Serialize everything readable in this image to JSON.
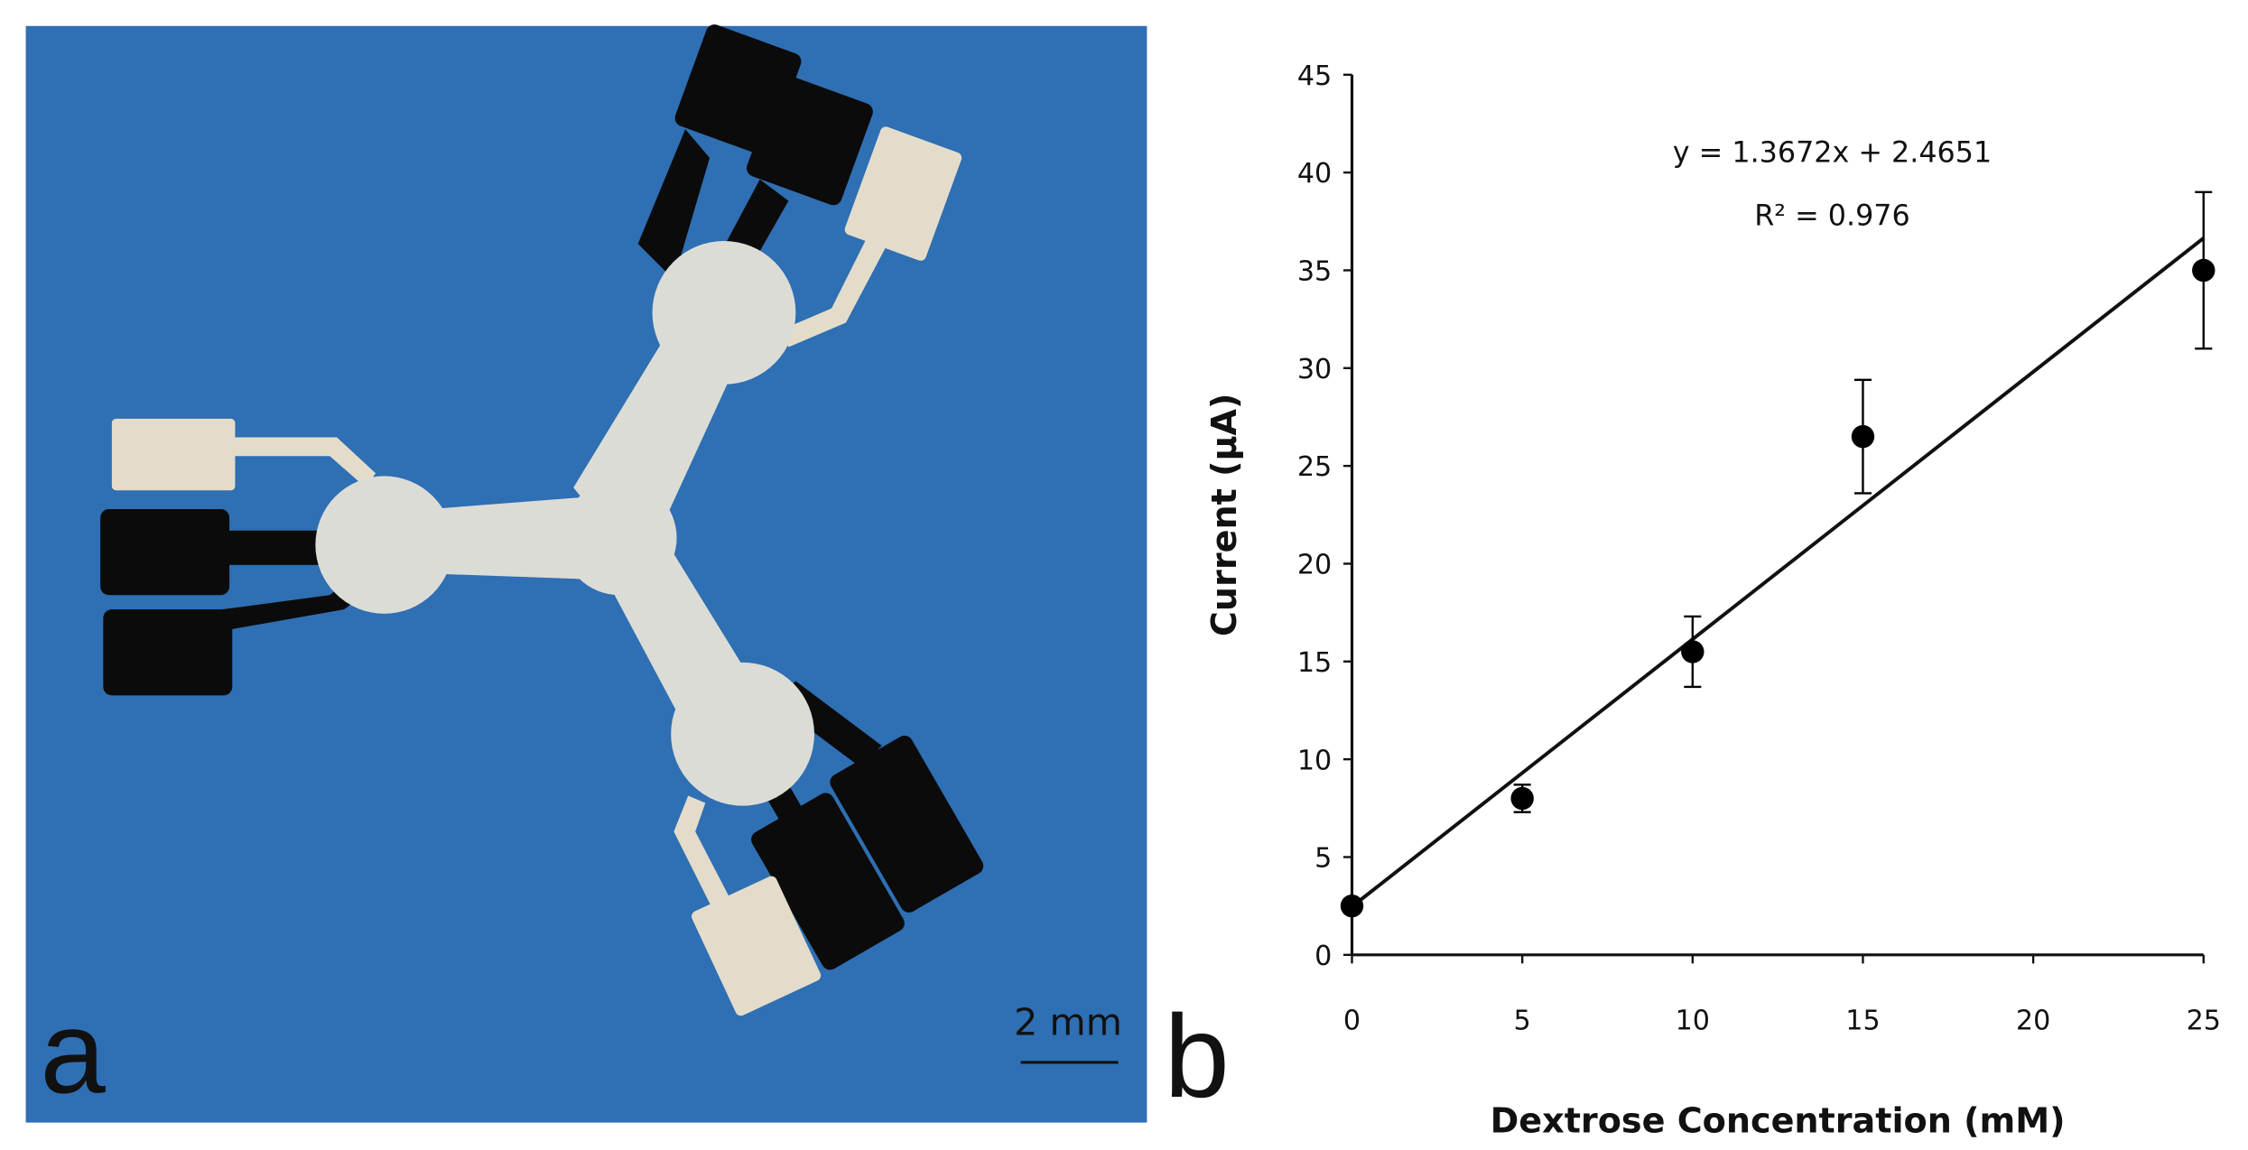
{
  "panel_a": {
    "label": "a",
    "scale_bar": "2 mm"
  },
  "chart_data": {
    "type": "scatter",
    "panel_label": "b",
    "x_label": "Dextrose Concentration (mM)",
    "y_label": "Current (μA)",
    "x": [
      0,
      5,
      10,
      15,
      25
    ],
    "series": [
      {
        "color": "#000000",
        "values": [
          2.5,
          8,
          15.5,
          26.5,
          35
        ],
        "errors": [
          0.3,
          0.7,
          1.8,
          2.9,
          4
        ]
      }
    ],
    "trendline": {
      "slope": 1.3672,
      "intercept": 2.4651,
      "label": "y = 1.3672x + 2.4651",
      "r2": 0.976,
      "r2_label": "R² = 0.976"
    },
    "xlim": [
      0,
      25
    ],
    "ylim": [
      0,
      45
    ],
    "xticks": [
      0,
      5,
      10,
      15,
      20,
      25
    ],
    "yticks": [
      0,
      5,
      10,
      15,
      20,
      25,
      30,
      35,
      40,
      45
    ]
  }
}
